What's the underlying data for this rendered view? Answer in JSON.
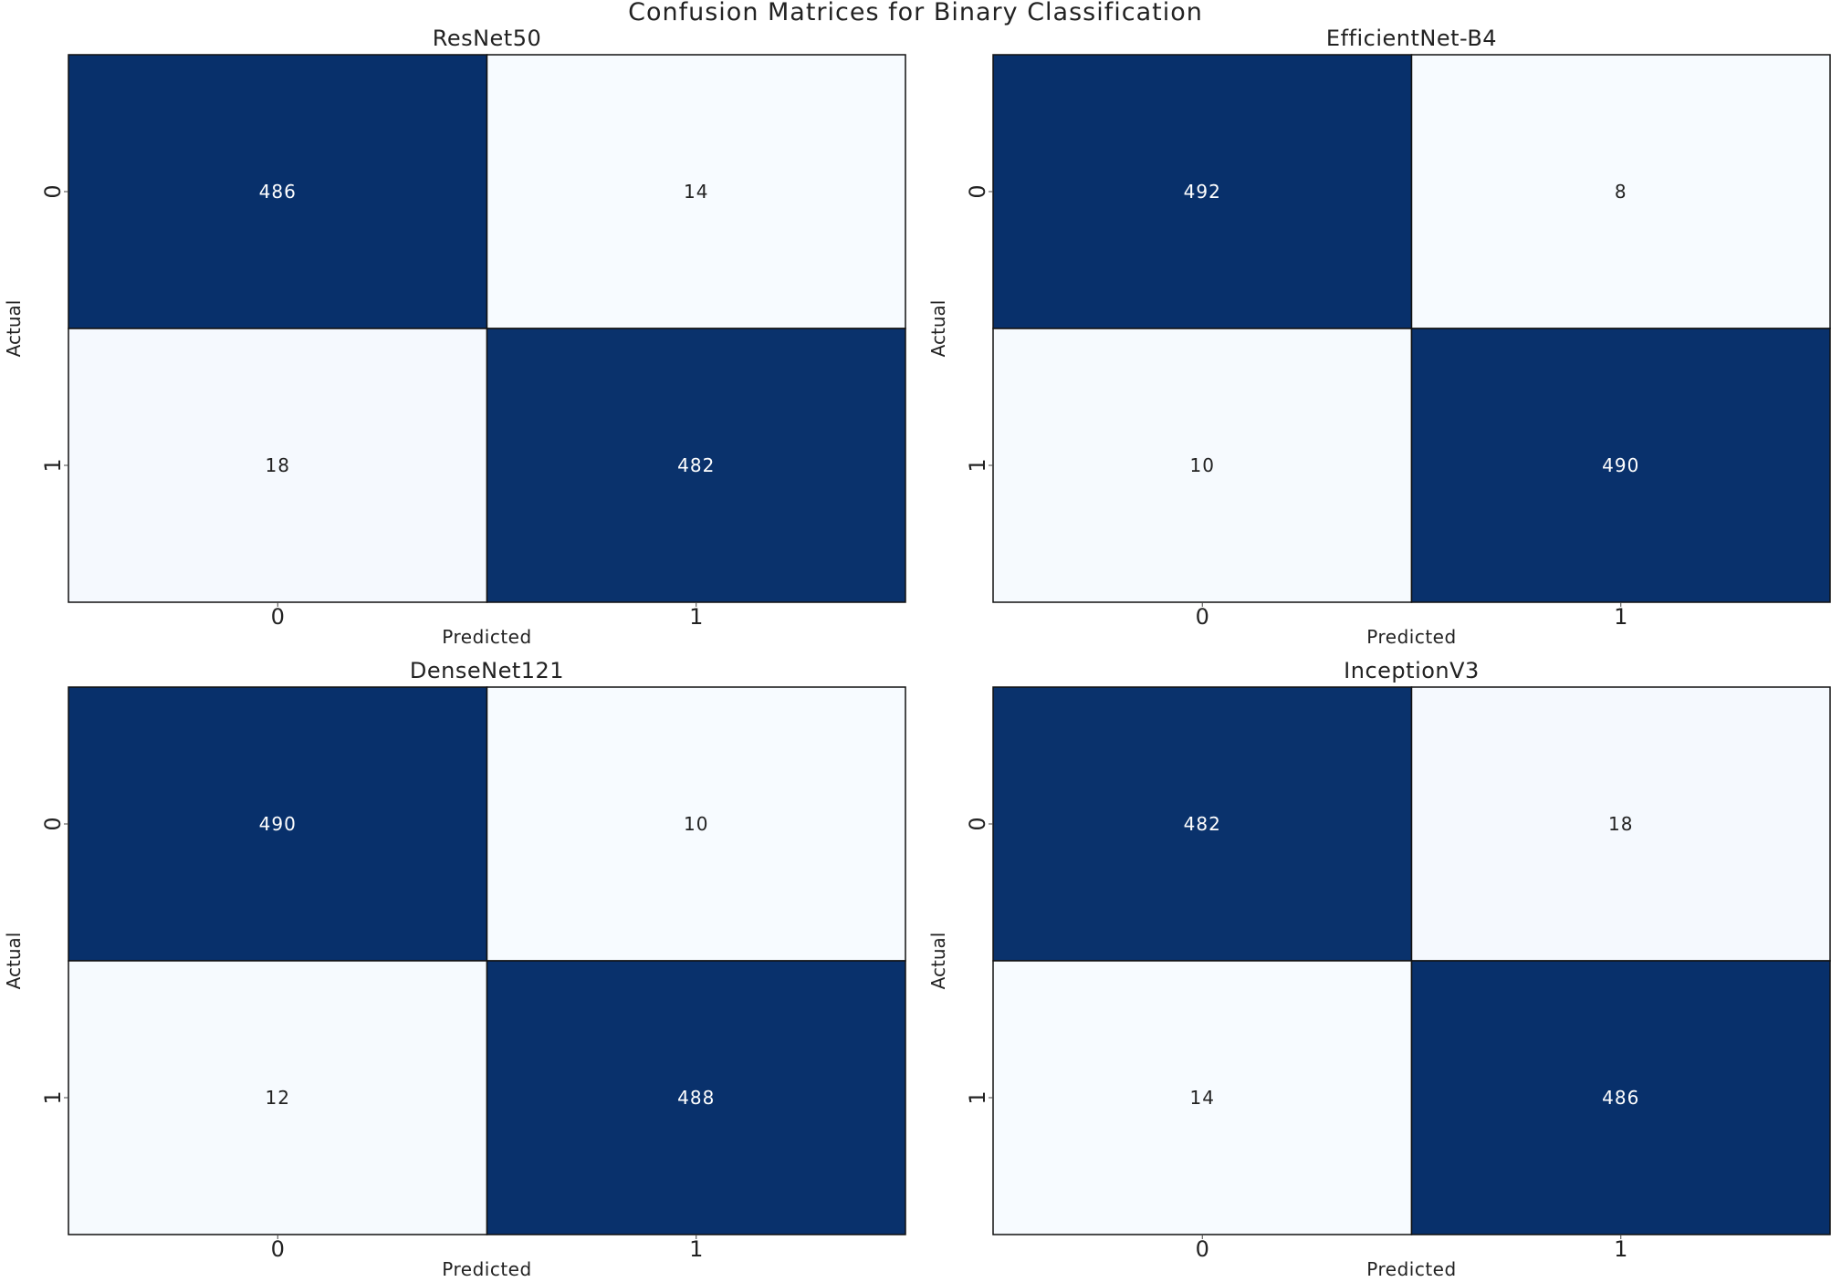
{
  "figure": {
    "title": "Confusion Matrices for Binary Classification"
  },
  "colors": {
    "high": "#08306b",
    "low": "#f7fbff",
    "text_on_high": "#ffffff",
    "text_on_low": "#222222",
    "cell_border": "#111111"
  },
  "chart_data": [
    {
      "type": "heatmap",
      "title": "ResNet50",
      "xlabel": "Predicted",
      "ylabel": "Actual",
      "x_categories": [
        "0",
        "1"
      ],
      "y_categories": [
        "0",
        "1"
      ],
      "values": [
        [
          486,
          14
        ],
        [
          18,
          482
        ]
      ],
      "colorbar": false
    },
    {
      "type": "heatmap",
      "title": "EfficientNet-B4",
      "xlabel": "Predicted",
      "ylabel": "Actual",
      "x_categories": [
        "0",
        "1"
      ],
      "y_categories": [
        "0",
        "1"
      ],
      "values": [
        [
          492,
          8
        ],
        [
          10,
          490
        ]
      ],
      "colorbar": false
    },
    {
      "type": "heatmap",
      "title": "DenseNet121",
      "xlabel": "Predicted",
      "ylabel": "Actual",
      "x_categories": [
        "0",
        "1"
      ],
      "y_categories": [
        "0",
        "1"
      ],
      "values": [
        [
          490,
          10
        ],
        [
          12,
          488
        ]
      ],
      "colorbar": false
    },
    {
      "type": "heatmap",
      "title": "InceptionV3",
      "xlabel": "Predicted",
      "ylabel": "Actual",
      "x_categories": [
        "0",
        "1"
      ],
      "y_categories": [
        "0",
        "1"
      ],
      "values": [
        [
          482,
          18
        ],
        [
          14,
          486
        ]
      ],
      "colorbar": false
    }
  ]
}
